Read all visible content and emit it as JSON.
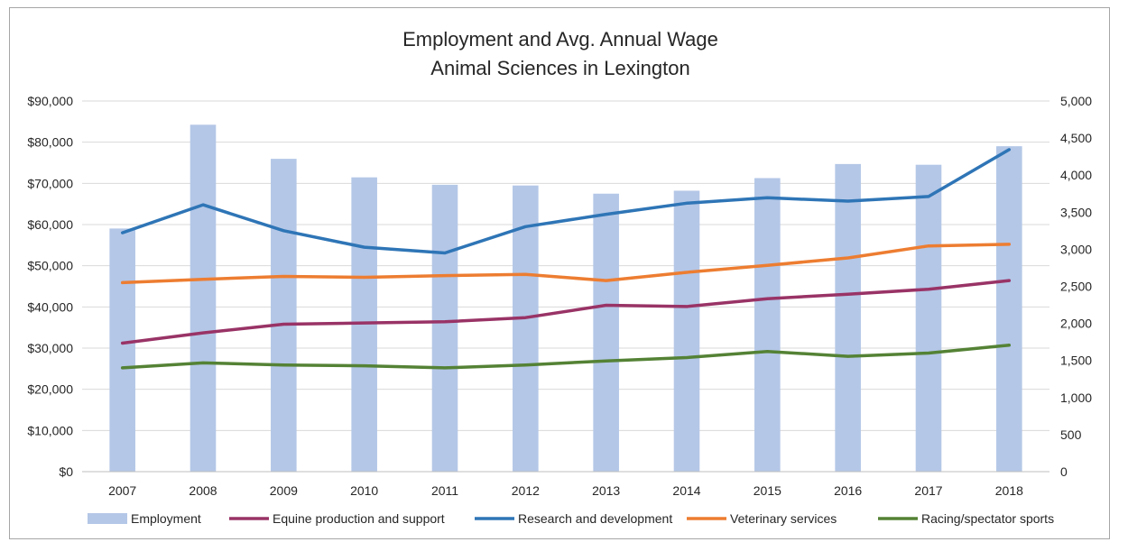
{
  "chart_data": {
    "type": "bar+line",
    "title": [
      "Employment and Avg. Annual Wage",
      "Animal Sciences in Lexington"
    ],
    "categories": [
      "2007",
      "2008",
      "2009",
      "2010",
      "2011",
      "2012",
      "2013",
      "2014",
      "2015",
      "2016",
      "2017",
      "2018"
    ],
    "bar_series": {
      "name": "Employment",
      "axis": "right",
      "color": "#b4c7e7",
      "values": [
        3280,
        4680,
        4220,
        3970,
        3870,
        3860,
        3750,
        3790,
        3960,
        4150,
        4140,
        4390
      ]
    },
    "line_series": [
      {
        "name": "Equine production and support",
        "axis": "left",
        "color": "#993366",
        "values": [
          31200,
          33700,
          35800,
          36100,
          36400,
          37400,
          40400,
          40100,
          42000,
          43100,
          44300,
          46400
        ]
      },
      {
        "name": "Research and development",
        "axis": "left",
        "color": "#2e75b6",
        "values": [
          58000,
          64800,
          58500,
          54500,
          53100,
          59500,
          62500,
          65200,
          66500,
          65700,
          66800,
          78200
        ]
      },
      {
        "name": "Veterinary services",
        "axis": "left",
        "color": "#ed7d31",
        "values": [
          45900,
          46700,
          47400,
          47200,
          47600,
          47900,
          46400,
          48400,
          50100,
          51900,
          54800,
          55200
        ]
      },
      {
        "name": "Racing/spectator sports",
        "axis": "left",
        "color": "#548235",
        "values": [
          25200,
          26400,
          25900,
          25700,
          25200,
          25900,
          26900,
          27700,
          29200,
          28000,
          28800,
          30700
        ]
      }
    ],
    "y_left": {
      "min": 0,
      "max": 90000,
      "step": 10000,
      "tick_labels": [
        "$0",
        "$10,000",
        "$20,000",
        "$30,000",
        "$40,000",
        "$50,000",
        "$60,000",
        "$70,000",
        "$80,000",
        "$90,000"
      ]
    },
    "y_right": {
      "min": 0,
      "max": 5000,
      "step": 500,
      "tick_labels": [
        "0",
        "500",
        "1,000",
        "1,500",
        "2,000",
        "2,500",
        "3,000",
        "3,500",
        "4,000",
        "4,500",
        "5,000"
      ]
    },
    "grid": true,
    "legend": "bottom",
    "legend_entries": [
      "Employment",
      "Equine production and support",
      "Research and development",
      "Veterinary services",
      "Racing/spectator sports"
    ]
  }
}
